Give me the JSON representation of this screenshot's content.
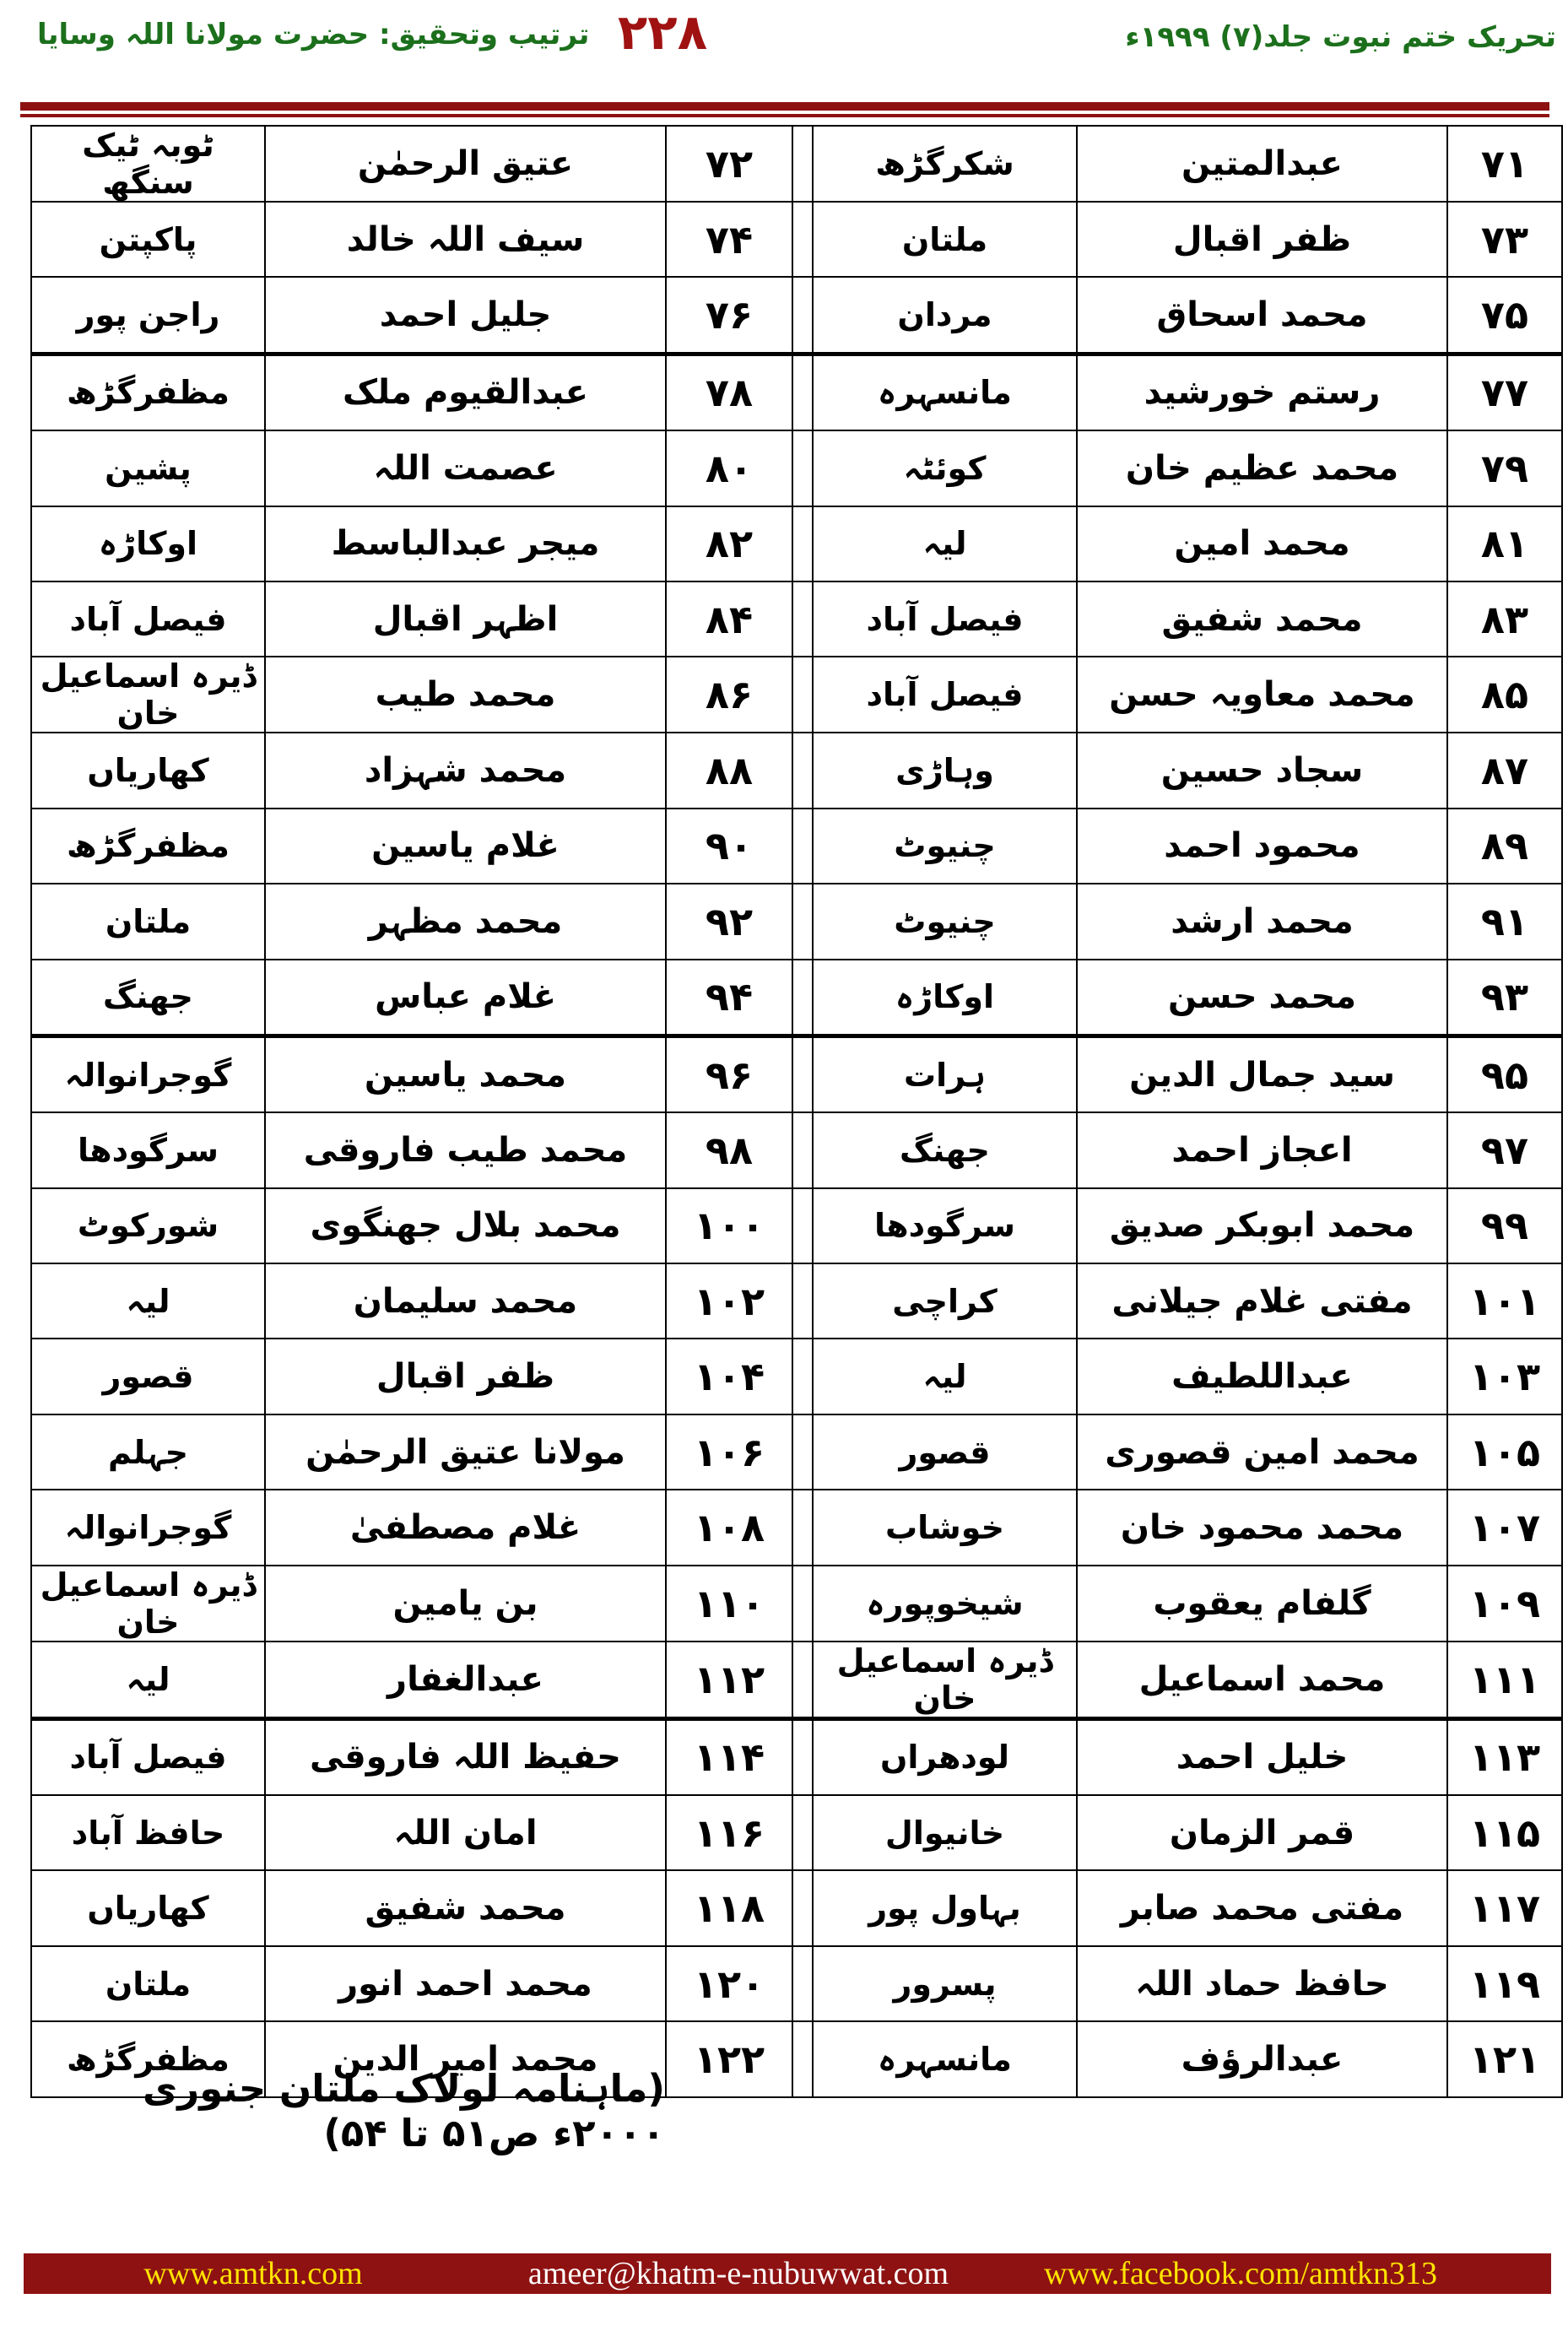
{
  "header": {
    "right_title": "تحریک ختم نبوت جلد(۷) ۱۹۹۹ء",
    "page_number": "۲۲۸",
    "left_title": "ترتیب وتحقیق: حضرت مولانا اللہ وسایا"
  },
  "colors": {
    "header_green": "#1c701c",
    "page_number_red": "#a01212",
    "rule_bar_red": "#8e1212",
    "footer_bar_maroon": "#8e1212",
    "footer_yellow": "#ffe400",
    "footer_white": "#ffffff"
  },
  "table": {
    "thick_border_after": [
      3,
      12,
      21
    ],
    "rows": [
      {
        "no_r": "۷۱",
        "name_r": "عبدالمتین",
        "city_r": "شکرگڑھ",
        "no_l": "۷۲",
        "name_l": "عتیق الرحمٰن",
        "city_l": "ٹوبہ ٹیک سنگھ"
      },
      {
        "no_r": "۷۳",
        "name_r": "ظفر اقبال",
        "city_r": "ملتان",
        "no_l": "۷۴",
        "name_l": "سیف اللہ خالد",
        "city_l": "پاکپتن"
      },
      {
        "no_r": "۷۵",
        "name_r": "محمد اسحاق",
        "city_r": "مردان",
        "no_l": "۷۶",
        "name_l": "جلیل احمد",
        "city_l": "راجن پور"
      },
      {
        "no_r": "۷۷",
        "name_r": "رستم خورشید",
        "city_r": "مانسہرہ",
        "no_l": "۷۸",
        "name_l": "عبدالقیوم ملک",
        "city_l": "مظفرگڑھ"
      },
      {
        "no_r": "۷۹",
        "name_r": "محمد عظیم خان",
        "city_r": "کوئٹہ",
        "no_l": "۸۰",
        "name_l": "عصمت اللہ",
        "city_l": "پشین"
      },
      {
        "no_r": "۸۱",
        "name_r": "محمد امین",
        "city_r": "لیہ",
        "no_l": "۸۲",
        "name_l": "میجر عبدالباسط",
        "city_l": "اوکاڑہ"
      },
      {
        "no_r": "۸۳",
        "name_r": "محمد شفیق",
        "city_r": "فیصل آباد",
        "no_l": "۸۴",
        "name_l": "اظہر اقبال",
        "city_l": "فیصل آباد"
      },
      {
        "no_r": "۸۵",
        "name_r": "محمد معاویہ حسن",
        "city_r": "فیصل آباد",
        "no_l": "۸۶",
        "name_l": "محمد طیب",
        "city_l": "ڈیرہ اسماعیل خان"
      },
      {
        "no_r": "۸۷",
        "name_r": "سجاد حسین",
        "city_r": "وہاڑی",
        "no_l": "۸۸",
        "name_l": "محمد شہزاد",
        "city_l": "کھاریاں"
      },
      {
        "no_r": "۸۹",
        "name_r": "محمود احمد",
        "city_r": "چنیوٹ",
        "no_l": "۹۰",
        "name_l": "غلام یاسین",
        "city_l": "مظفرگڑھ"
      },
      {
        "no_r": "۹۱",
        "name_r": "محمد ارشد",
        "city_r": "چنیوٹ",
        "no_l": "۹۲",
        "name_l": "محمد مظہر",
        "city_l": "ملتان"
      },
      {
        "no_r": "۹۳",
        "name_r": "محمد حسن",
        "city_r": "اوکاڑہ",
        "no_l": "۹۴",
        "name_l": "غلام عباس",
        "city_l": "جھنگ"
      },
      {
        "no_r": "۹۵",
        "name_r": "سید جمال الدین",
        "city_r": "ہرات",
        "no_l": "۹۶",
        "name_l": "محمد یاسین",
        "city_l": "گوجرانوالہ"
      },
      {
        "no_r": "۹۷",
        "name_r": "اعجاز احمد",
        "city_r": "جھنگ",
        "no_l": "۹۸",
        "name_l": "محمد طیب فاروقی",
        "city_l": "سرگودھا"
      },
      {
        "no_r": "۹۹",
        "name_r": "محمد ابوبکر صدیق",
        "city_r": "سرگودھا",
        "no_l": "۱۰۰",
        "name_l": "محمد بلال جھنگوی",
        "city_l": "شورکوٹ"
      },
      {
        "no_r": "۱۰۱",
        "name_r": "مفتی غلام جیلانی",
        "city_r": "کراچی",
        "no_l": "۱۰۲",
        "name_l": "محمد سلیمان",
        "city_l": "لیہ"
      },
      {
        "no_r": "۱۰۳",
        "name_r": "عبداللطیف",
        "city_r": "لیہ",
        "no_l": "۱۰۴",
        "name_l": "ظفر اقبال",
        "city_l": "قصور"
      },
      {
        "no_r": "۱۰۵",
        "name_r": "محمد امین قصوری",
        "city_r": "قصور",
        "no_l": "۱۰۶",
        "name_l": "مولانا عتیق الرحمٰن",
        "city_l": "جہلم"
      },
      {
        "no_r": "۱۰۷",
        "name_r": "محمد محمود خان",
        "city_r": "خوشاب",
        "no_l": "۱۰۸",
        "name_l": "غلام مصطفیٰ",
        "city_l": "گوجرانوالہ"
      },
      {
        "no_r": "۱۰۹",
        "name_r": "گلفام یعقوب",
        "city_r": "شیخوپورہ",
        "no_l": "۱۱۰",
        "name_l": "بن یامین",
        "city_l": "ڈیرہ اسماعیل خان"
      },
      {
        "no_r": "۱۱۱",
        "name_r": "محمد اسماعیل",
        "city_r": "ڈیرہ اسماعیل خان",
        "no_l": "۱۱۲",
        "name_l": "عبدالغفار",
        "city_l": "لیہ"
      },
      {
        "no_r": "۱۱۳",
        "name_r": "خلیل احمد",
        "city_r": "لودھراں",
        "no_l": "۱۱۴",
        "name_l": "حفیظ اللہ فاروقی",
        "city_l": "فیصل آباد"
      },
      {
        "no_r": "۱۱۵",
        "name_r": "قمر الزمان",
        "city_r": "خانیوال",
        "no_l": "۱۱۶",
        "name_l": "امان اللہ",
        "city_l": "حافظ آباد"
      },
      {
        "no_r": "۱۱۷",
        "name_r": "مفتی محمد صابر",
        "city_r": "بہاول پور",
        "no_l": "۱۱۸",
        "name_l": "محمد شفیق",
        "city_l": "کھاریاں"
      },
      {
        "no_r": "۱۱۹",
        "name_r": "حافظ حماد اللہ",
        "city_r": "پسرور",
        "no_l": "۱۲۰",
        "name_l": "محمد احمد انور",
        "city_l": "ملتان"
      },
      {
        "no_r": "۱۲۱",
        "name_r": "عبدالرؤف",
        "city_r": "مانسہرہ",
        "no_l": "۱۲۲",
        "name_l": "محمد امیر الدین",
        "city_l": "مظفرگڑھ"
      }
    ]
  },
  "footnote": {
    "text": "(ماہنامہ لولاک ملتان جنوری ۲۰۰۰ء ص۵۱ تا ۵۴)"
  },
  "footer": {
    "website": "www.amtkn.com",
    "email": "ameer@khatm-e-nubuwwat.com",
    "facebook": "www.facebook.com/amtkn313"
  }
}
